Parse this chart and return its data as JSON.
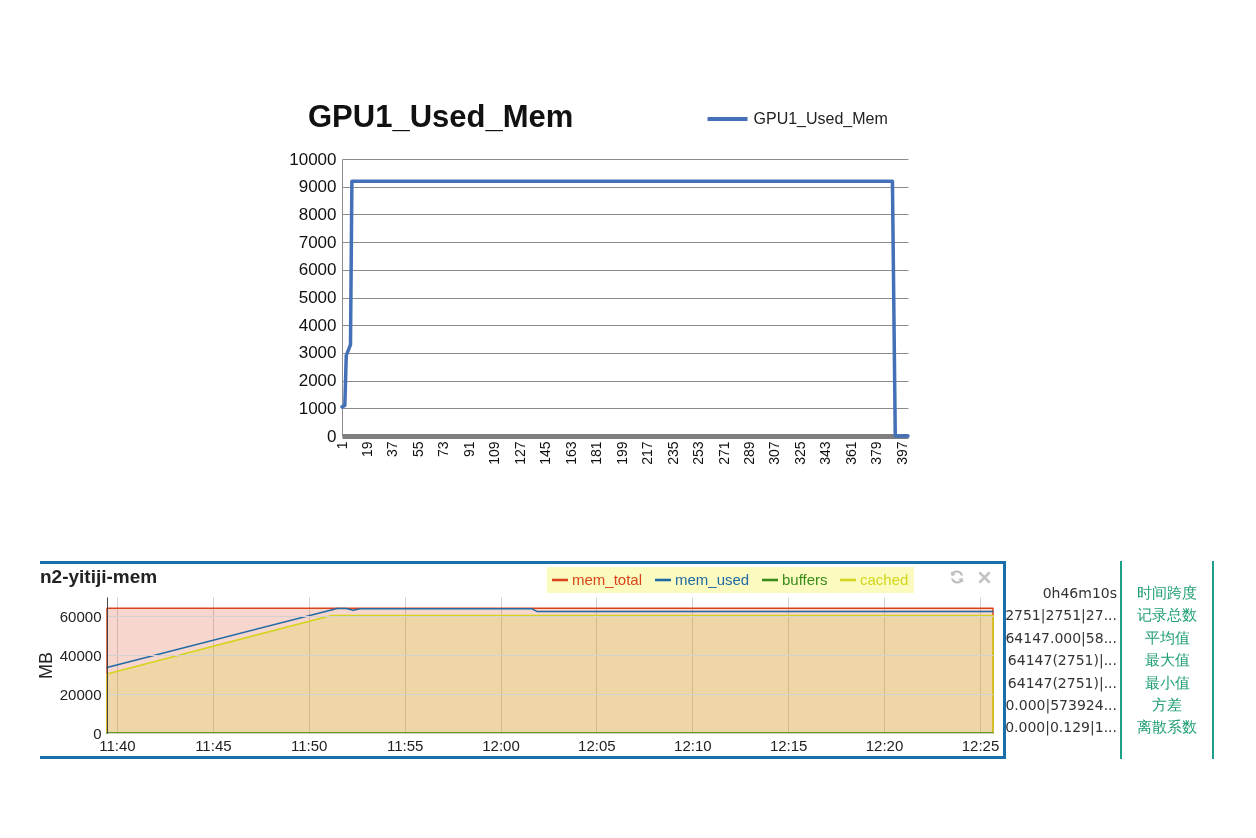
{
  "chart_data": [
    {
      "type": "line",
      "title": "GPU1_Used_Mem",
      "x": [
        1,
        3,
        4,
        7,
        8,
        390,
        392,
        401
      ],
      "series": [
        {
          "name": "GPU1_Used_Mem",
          "color": "#4470b8",
          "values": [
            1050,
            1100,
            2900,
            3300,
            9200,
            9200,
            0,
            0
          ]
        }
      ],
      "xlim": [
        1,
        401
      ],
      "xticks": [
        1,
        19,
        37,
        55,
        73,
        91,
        109,
        127,
        145,
        163,
        181,
        199,
        217,
        235,
        253,
        271,
        289,
        307,
        325,
        343,
        361,
        379,
        397
      ],
      "ylim": [
        0,
        10000
      ],
      "yticks": [
        0,
        1000,
        2000,
        3000,
        4000,
        5000,
        6000,
        7000,
        8000,
        9000,
        10000
      ],
      "grid": "y",
      "legend": "top right"
    },
    {
      "type": "area",
      "title": "n2-yitiji-mem",
      "ylabel": "MB",
      "series": [
        {
          "name": "mem_total",
          "color": "#d9441c",
          "x": [
            11.658,
            12.428
          ],
          "values": [
            64147,
            64147
          ]
        },
        {
          "name": "mem_used",
          "type": "line",
          "color": "#1f6aa5",
          "x": [
            11.658,
            11.858,
            11.866,
            11.872,
            11.878,
            12.027,
            12.032,
            12.428
          ],
          "values": [
            33700,
            64100,
            64100,
            63200,
            64000,
            64000,
            62500,
            62500
          ]
        },
        {
          "name": "buffers",
          "type": "line",
          "color": "#3a8a1a",
          "x": [
            11.658,
            12.428
          ],
          "values": [
            0,
            0
          ]
        },
        {
          "name": "cached",
          "color": "#d4d41c",
          "x": [
            11.658,
            11.853,
            12.428
          ],
          "values": [
            30400,
            60500,
            60500
          ]
        }
      ],
      "xlim": [
        11.658,
        12.428
      ],
      "xticks": [
        {
          "value": 11.6667,
          "label": "11:40"
        },
        {
          "value": 11.75,
          "label": "11:45"
        },
        {
          "value": 11.8333,
          "label": "11:50"
        },
        {
          "value": 11.9167,
          "label": "11:55"
        },
        {
          "value": 12,
          "label": "12:00"
        },
        {
          "value": 12.0833,
          "label": "12:05"
        },
        {
          "value": 12.1667,
          "label": "12:10"
        },
        {
          "value": 12.25,
          "label": "12:15"
        },
        {
          "value": 12.3333,
          "label": "12:20"
        },
        {
          "value": 12.4167,
          "label": "12:25"
        }
      ],
      "ylim": [
        0,
        70000
      ],
      "yticks": [
        0,
        20000,
        40000,
        60000
      ],
      "grid": true,
      "legend": "top right"
    },
    {
      "type": "other",
      "annotations": [
        "0h46m10s",
        "时间跨度",
        "2751|2751|27...",
        "记录总数",
        "64147.000|58...",
        "平均值",
        "64147(2751)|...",
        "最大值",
        "64147(2751)|...",
        "最小值",
        "0.000|573924...",
        "方差",
        "0.000|0.129|1...",
        "离散系数"
      ]
    }
  ]
}
